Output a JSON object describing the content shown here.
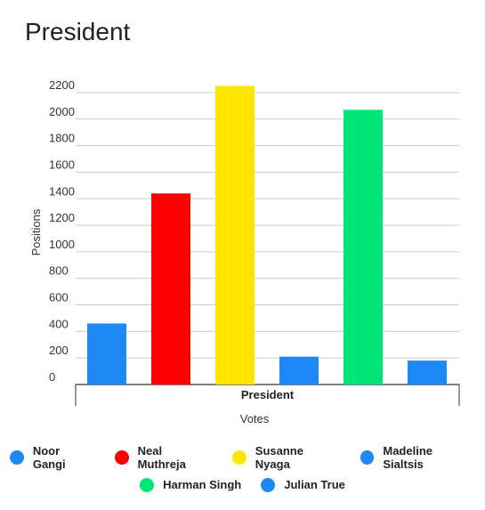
{
  "chart_data": {
    "type": "bar",
    "title": "President",
    "xlabel": "Votes",
    "ylabel": "Positions",
    "categories": [
      "President"
    ],
    "ylim": [
      0,
      2200
    ],
    "yticks": [
      0,
      200,
      400,
      600,
      800,
      1000,
      1200,
      1400,
      1600,
      1800,
      2000,
      2200
    ],
    "grid": true,
    "legend_position": "bottom",
    "series": [
      {
        "name": "Noor Gangi",
        "values": [
          460
        ],
        "color": "#1E88F5"
      },
      {
        "name": "Neal Muthreja",
        "values": [
          1440
        ],
        "color": "#FF0000"
      },
      {
        "name": "Susanne Nyaga",
        "values": [
          2250
        ],
        "color": "#FFE600"
      },
      {
        "name": "Madeline Sialtsis",
        "values": [
          210
        ],
        "color": "#1E88F5"
      },
      {
        "name": "Harman Singh",
        "values": [
          2070
        ],
        "color": "#00E676"
      },
      {
        "name": "Julian True",
        "values": [
          180
        ],
        "color": "#1E88F5"
      }
    ],
    "legend_rows": [
      [
        "Noor Gangi",
        "Neal Muthreja",
        "Susanne Nyaga",
        "Madeline Sialtsis"
      ],
      [
        "Harman Singh",
        "Julian True"
      ]
    ]
  }
}
